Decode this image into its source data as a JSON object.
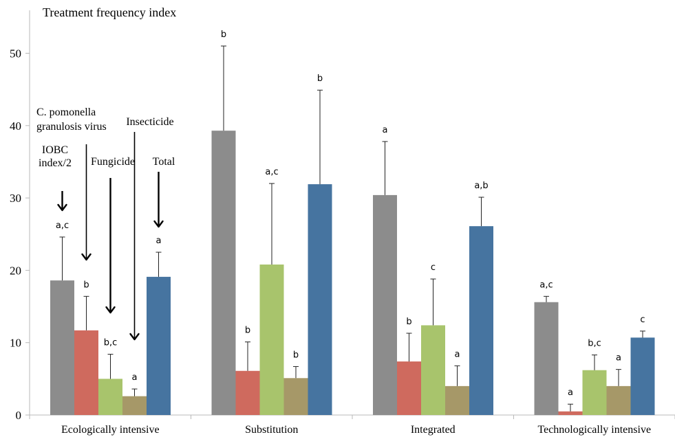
{
  "chart_data": {
    "type": "bar",
    "title": "Treatment frequency index",
    "ylim": [
      0,
      55
    ],
    "yticks": [
      0,
      10,
      20,
      30,
      40,
      50
    ],
    "grid": false,
    "legend": "annotated",
    "categories": [
      "Ecologically intensive",
      "Substitution",
      "Integrated",
      "Technologically intensive"
    ],
    "series": [
      {
        "name": "IOBC index/2",
        "color": "#8c8c8c",
        "values": [
          18.6,
          39.3,
          30.4,
          15.6
        ],
        "errors": [
          6.0,
          11.7,
          7.4,
          0.8
        ],
        "labels": [
          "a,c",
          "b",
          "a",
          "a,c"
        ]
      },
      {
        "name": "C. pomonella granulosis virus",
        "color": "#cf6a5e",
        "values": [
          11.7,
          6.1,
          7.4,
          0.5
        ],
        "errors": [
          4.7,
          4.0,
          3.9,
          1.0
        ],
        "labels": [
          "b",
          "b",
          "b",
          "a"
        ]
      },
      {
        "name": "Fungicide",
        "color": "#a8c46c",
        "values": [
          5.0,
          20.8,
          12.4,
          6.2
        ],
        "errors": [
          3.4,
          11.2,
          6.4,
          2.1
        ],
        "labels": [
          "b,c",
          "a,c",
          "c",
          "b,c"
        ]
      },
      {
        "name": "Insecticide",
        "color": "#a69868",
        "values": [
          2.6,
          5.1,
          4.0,
          4.0
        ],
        "errors": [
          1.0,
          1.6,
          2.8,
          2.3
        ],
        "labels": [
          "a",
          "b",
          "a",
          "a"
        ]
      },
      {
        "name": "Total",
        "color": "#4674a0",
        "values": [
          19.1,
          31.9,
          26.1,
          10.7
        ],
        "errors": [
          3.4,
          13.0,
          4.0,
          0.9
        ],
        "labels": [
          "a",
          "b",
          "a,b",
          "c"
        ]
      }
    ],
    "annotations": [
      {
        "series": 0,
        "lines": [
          "IOBC",
          "index/2"
        ]
      },
      {
        "series": 1,
        "lines": [
          "C. pomonella",
          "granulosis virus"
        ]
      },
      {
        "series": 2,
        "lines": [
          "Fungicide"
        ]
      },
      {
        "series": 3,
        "lines": [
          "Insecticide"
        ]
      },
      {
        "series": 4,
        "lines": [
          "Total"
        ]
      }
    ]
  }
}
